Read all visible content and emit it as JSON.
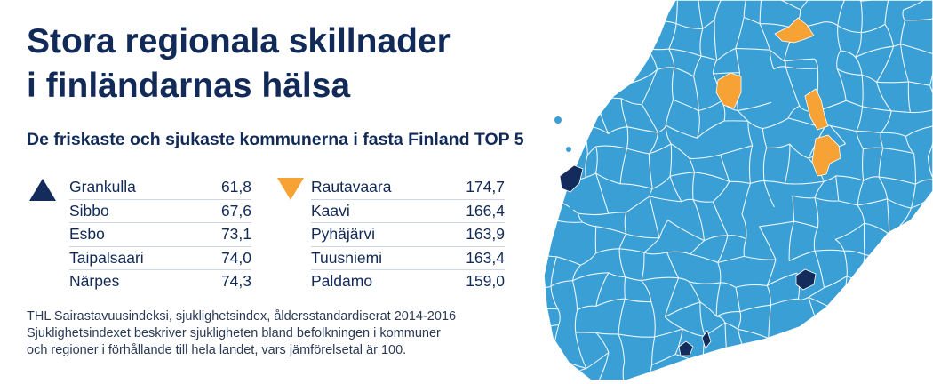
{
  "title": {
    "line1": "Stora regionala skillnader",
    "line2": "i finländarnas hälsa"
  },
  "subtitle": "De friskaste och sjukaste kommunerna i fasta Finland TOP 5",
  "chart_data": {
    "type": "table",
    "healthiest": {
      "marker_color": "#142c5c",
      "rows": [
        {
          "name": "Grankulla",
          "value": "61,8"
        },
        {
          "name": "Sibbo",
          "value": "67,6"
        },
        {
          "name": "Esbo",
          "value": "73,1"
        },
        {
          "name": "Taipalsaari",
          "value": "74,0"
        },
        {
          "name": "Närpes",
          "value": "74,3"
        }
      ]
    },
    "sickest": {
      "marker_color": "#f7a234",
      "rows": [
        {
          "name": "Rautavaara",
          "value": "174,7"
        },
        {
          "name": "Kaavi",
          "value": "166,4"
        },
        {
          "name": "Pyhäjärvi",
          "value": "163,9"
        },
        {
          "name": "Tuusniemi",
          "value": "163,4"
        },
        {
          "name": "Paldamo",
          "value": "159,0"
        }
      ]
    },
    "map_colors": {
      "land": "#3a9fd4",
      "borders": "#ffffff",
      "healthy_region": "#142c5c",
      "sick_region": "#f7a234"
    }
  },
  "footnote": {
    "line1": "THL Sairastavuusindeksi, sjuklighetsindex, åldersstandardiserat 2014-2016",
    "line2": "Sjuklighetsindexet beskriver sjukligheten bland befolkningen i kommuner",
    "line3": "och regioner i förhållande till hela landet, vars jämförelsetal är 100."
  }
}
